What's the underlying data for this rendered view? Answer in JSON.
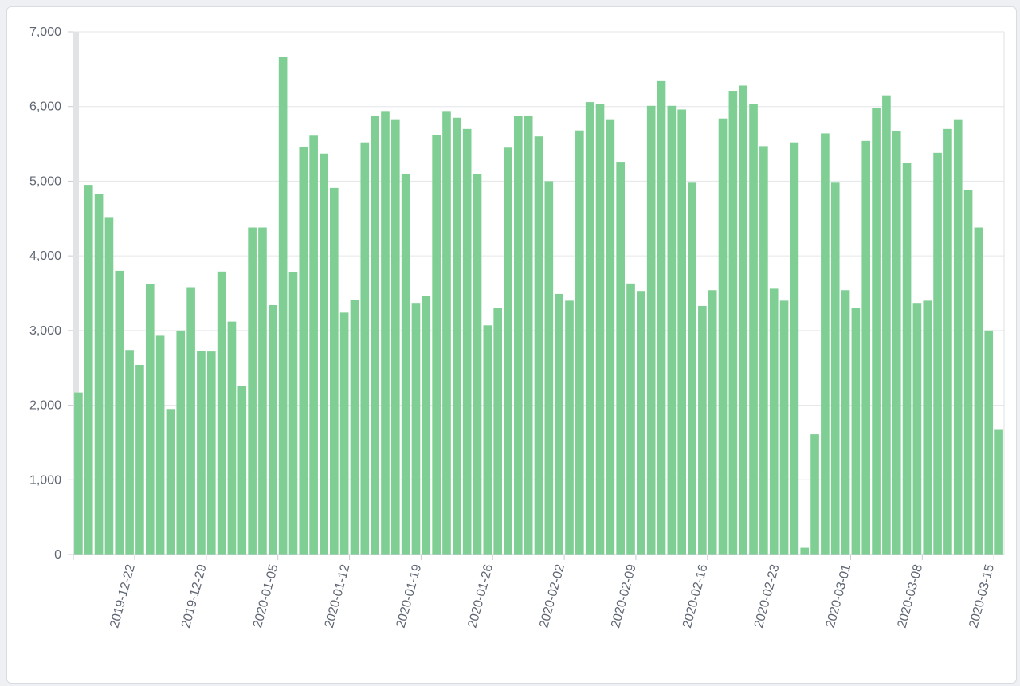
{
  "chart_data": {
    "type": "bar",
    "title": "",
    "xlabel": "",
    "ylabel": "",
    "ylim": [
      0,
      7000
    ],
    "yticks": [
      0,
      1000,
      2000,
      3000,
      4000,
      5000,
      6000,
      7000
    ],
    "ytick_labels": [
      "0",
      "1,000",
      "2,000",
      "3,000",
      "4,000",
      "5,000",
      "6,000",
      "7,000"
    ],
    "grid": true,
    "bar_color": "#7fcf94",
    "xtick_labels": [
      "2019-12-22",
      "2019-12-29",
      "2020-01-05",
      "2020-01-12",
      "2020-01-19",
      "2020-01-26",
      "2020-02-02",
      "2020-02-09",
      "2020-02-16",
      "2020-02-23",
      "2020-03-01",
      "2020-03-08",
      "2020-03-15"
    ],
    "categories": [
      "2019-12-16",
      "2019-12-17",
      "2019-12-18",
      "2019-12-19",
      "2019-12-20",
      "2019-12-21",
      "2019-12-22",
      "2019-12-23",
      "2019-12-24",
      "2019-12-25",
      "2019-12-26",
      "2019-12-27",
      "2019-12-28",
      "2019-12-29",
      "2019-12-30",
      "2019-12-31",
      "2020-01-01",
      "2020-01-02",
      "2020-01-03",
      "2020-01-04",
      "2020-01-05",
      "2020-01-06",
      "2020-01-07",
      "2020-01-08",
      "2020-01-09",
      "2020-01-10",
      "2020-01-11",
      "2020-01-12",
      "2020-01-13",
      "2020-01-14",
      "2020-01-15",
      "2020-01-16",
      "2020-01-17",
      "2020-01-18",
      "2020-01-19",
      "2020-01-20",
      "2020-01-21",
      "2020-01-22",
      "2020-01-23",
      "2020-01-24",
      "2020-01-25",
      "2020-01-26",
      "2020-01-27",
      "2020-01-28",
      "2020-01-29",
      "2020-01-30",
      "2020-01-31",
      "2020-02-01",
      "2020-02-02",
      "2020-02-03",
      "2020-02-04",
      "2020-02-05",
      "2020-02-06",
      "2020-02-07",
      "2020-02-08",
      "2020-02-09",
      "2020-02-10",
      "2020-02-11",
      "2020-02-12",
      "2020-02-13",
      "2020-02-14",
      "2020-02-15",
      "2020-02-16",
      "2020-02-17",
      "2020-02-18",
      "2020-02-19",
      "2020-02-20",
      "2020-02-21",
      "2020-02-22",
      "2020-02-23",
      "2020-02-24",
      "2020-02-25",
      "2020-02-26",
      "2020-02-27",
      "2020-02-28",
      "2020-02-29",
      "2020-03-01",
      "2020-03-02",
      "2020-03-03",
      "2020-03-04",
      "2020-03-05",
      "2020-03-06",
      "2020-03-07",
      "2020-03-08",
      "2020-03-09",
      "2020-03-10",
      "2020-03-11",
      "2020-03-12",
      "2020-03-13",
      "2020-03-14",
      "2020-03-15"
    ],
    "values": [
      2170,
      4950,
      4830,
      4520,
      3800,
      2740,
      2540,
      3620,
      2930,
      1950,
      3000,
      3580,
      2730,
      2720,
      3790,
      3120,
      2260,
      4380,
      4380,
      3340,
      6660,
      3780,
      5460,
      5610,
      5370,
      4910,
      3240,
      3410,
      5520,
      5880,
      5940,
      5830,
      5100,
      3370,
      3460,
      5620,
      5940,
      5850,
      5700,
      5090,
      3070,
      3300,
      5450,
      5870,
      5880,
      5600,
      5000,
      3490,
      3400,
      5680,
      6060,
      6030,
      5830,
      5260,
      3630,
      3530,
      6010,
      6340,
      6010,
      5960,
      4980,
      3330,
      3540,
      5840,
      6210,
      6280,
      6030,
      5470,
      3560,
      3400,
      5520,
      90,
      1610,
      5640,
      4980,
      3540,
      3300,
      5540,
      5980,
      6150,
      5670,
      5250,
      3370,
      3400,
      5380,
      5700,
      5830,
      4880,
      4380,
      3000,
      1670
    ]
  }
}
